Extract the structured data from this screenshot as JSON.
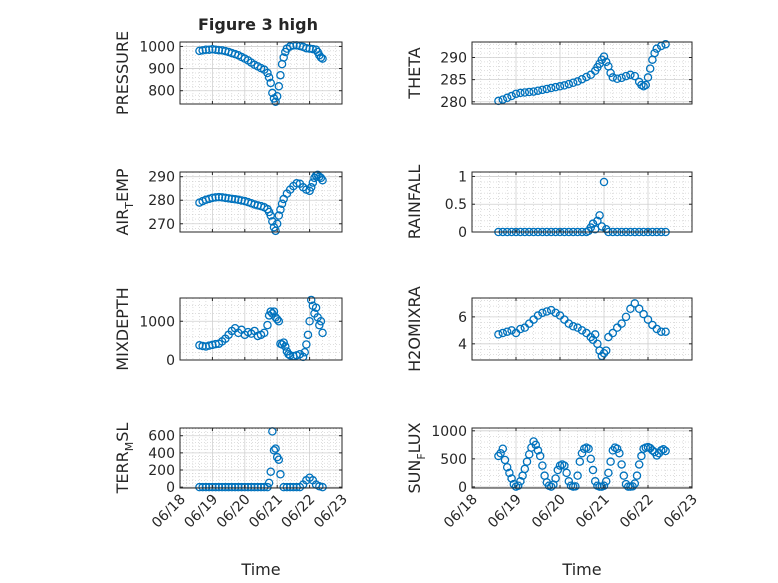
{
  "figure": {
    "title": "Figure 3 high",
    "marker_color": "#0072BD"
  },
  "chart_data": [
    {
      "type": "scatter",
      "ylabel": "PRESSURE",
      "xlim": [
        "06/18",
        "06/23"
      ],
      "ylim": [
        740,
        1020
      ],
      "yticks": [
        800,
        900,
        1000
      ],
      "xticks": [
        "06/18",
        "06/19",
        "06/20",
        "06/21",
        "06/22",
        "06/23"
      ],
      "show_xtick_labels": false,
      "xlabel": "",
      "grid": true,
      "x": [
        0.6,
        0.7,
        0.8,
        0.9,
        1.0,
        1.1,
        1.2,
        1.3,
        1.4,
        1.5,
        1.6,
        1.7,
        1.8,
        1.9,
        2.0,
        2.1,
        2.2,
        2.3,
        2.4,
        2.5,
        2.6,
        2.7,
        2.75,
        2.8,
        2.85,
        2.9,
        2.95,
        3.0,
        3.05,
        3.1,
        3.15,
        3.2,
        3.25,
        3.3,
        3.4,
        3.5,
        3.6,
        3.7,
        3.8,
        3.9,
        4.0,
        4.1,
        4.2,
        4.25,
        4.3,
        4.35,
        4.4
      ],
      "y": [
        980,
        982,
        985,
        985,
        987,
        985,
        983,
        982,
        979,
        975,
        970,
        965,
        960,
        952,
        945,
        937,
        927,
        917,
        910,
        902,
        895,
        880,
        860,
        835,
        790,
        765,
        750,
        775,
        820,
        870,
        920,
        950,
        975,
        990,
        1000,
        1005,
        1005,
        1002,
        998,
        992,
        990,
        988,
        985,
        975,
        960,
        950,
        945
      ]
    },
    {
      "type": "scatter",
      "ylabel": "THETA",
      "xlim": [
        "06/18",
        "06/23"
      ],
      "ylim": [
        279.5,
        293.5
      ],
      "yticks": [
        280,
        285,
        290
      ],
      "xticks": [
        "06/18",
        "06/19",
        "06/20",
        "06/21",
        "06/22",
        "06/23"
      ],
      "show_xtick_labels": false,
      "xlabel": "",
      "grid": true,
      "x": [
        0.6,
        0.7,
        0.8,
        0.9,
        1.0,
        1.1,
        1.2,
        1.3,
        1.4,
        1.5,
        1.6,
        1.7,
        1.8,
        1.9,
        2.0,
        2.1,
        2.2,
        2.3,
        2.4,
        2.5,
        2.6,
        2.7,
        2.8,
        2.85,
        2.9,
        2.95,
        3.0,
        3.05,
        3.1,
        3.15,
        3.2,
        3.3,
        3.4,
        3.5,
        3.6,
        3.7,
        3.8,
        3.85,
        3.9,
        3.95,
        4.0,
        4.05,
        4.1,
        4.15,
        4.2,
        4.3,
        4.4
      ],
      "y": [
        280.2,
        280.5,
        280.9,
        281.3,
        281.8,
        282.0,
        282.1,
        282.2,
        282.3,
        282.5,
        282.7,
        282.9,
        283.1,
        283.3,
        283.5,
        283.7,
        284.0,
        284.3,
        284.6,
        285.1,
        285.6,
        286.1,
        287.0,
        287.8,
        288.6,
        289.5,
        290.2,
        289.0,
        288.0,
        286.5,
        285.5,
        285.2,
        285.4,
        285.8,
        286.1,
        285.8,
        284.5,
        283.8,
        283.5,
        283.8,
        285.5,
        287.5,
        289.5,
        291.0,
        292.0,
        292.6,
        293.0
      ]
    },
    {
      "type": "scatter",
      "ylabel": "AIR_TEMP",
      "ylabel_main": "AIR",
      "ylabel_sub": "T",
      "ylabel_rest": "EMP",
      "xlim": [
        "06/18",
        "06/23"
      ],
      "ylim": [
        266.5,
        292
      ],
      "yticks": [
        270,
        280,
        290
      ],
      "xticks": [
        "06/18",
        "06/19",
        "06/20",
        "06/21",
        "06/22",
        "06/23"
      ],
      "show_xtick_labels": false,
      "xlabel": "",
      "grid": true,
      "x": [
        0.6,
        0.7,
        0.8,
        0.9,
        1.0,
        1.1,
        1.2,
        1.3,
        1.4,
        1.5,
        1.6,
        1.7,
        1.8,
        1.9,
        2.0,
        2.1,
        2.2,
        2.3,
        2.4,
        2.5,
        2.6,
        2.7,
        2.75,
        2.8,
        2.85,
        2.9,
        2.95,
        3.0,
        3.05,
        3.1,
        3.15,
        3.2,
        3.3,
        3.4,
        3.5,
        3.6,
        3.7,
        3.8,
        3.9,
        4.0,
        4.05,
        4.1,
        4.15,
        4.2,
        4.25,
        4.3,
        4.35,
        4.4
      ],
      "y": [
        279.0,
        279.6,
        280.2,
        280.6,
        281.0,
        281.2,
        281.3,
        281.2,
        281.0,
        280.8,
        280.6,
        280.4,
        280.2,
        279.9,
        279.6,
        279.2,
        278.7,
        278.2,
        277.8,
        277.5,
        277.0,
        276.2,
        275.0,
        273.5,
        271.0,
        268.5,
        267.0,
        270.0,
        273.5,
        276.0,
        278.5,
        280.5,
        282.8,
        284.5,
        286.0,
        287.2,
        287.0,
        285.5,
        284.5,
        284.0,
        285.5,
        287.5,
        289.5,
        290.5,
        290.8,
        290.0,
        289.5,
        288.5
      ]
    },
    {
      "type": "scatter",
      "ylabel": "RAINFALL",
      "xlim": [
        "06/18",
        "06/23"
      ],
      "ylim": [
        0,
        1.08
      ],
      "yticks": [
        0,
        0.5,
        1
      ],
      "xticks": [
        "06/18",
        "06/19",
        "06/20",
        "06/21",
        "06/22",
        "06/23"
      ],
      "show_xtick_labels": false,
      "xlabel": "",
      "grid": true,
      "x": [
        0.6,
        0.7,
        0.8,
        0.9,
        1.0,
        1.1,
        1.2,
        1.3,
        1.4,
        1.5,
        1.6,
        1.7,
        1.8,
        1.9,
        2.0,
        2.1,
        2.2,
        2.3,
        2.4,
        2.5,
        2.6,
        2.65,
        2.7,
        2.75,
        2.8,
        2.85,
        2.9,
        2.95,
        3.0,
        3.05,
        3.1,
        3.2,
        3.3,
        3.4,
        3.5,
        3.6,
        3.7,
        3.8,
        3.9,
        4.0,
        4.1,
        4.2,
        4.3,
        4.4
      ],
      "y": [
        0,
        0,
        0,
        0,
        0,
        0,
        0,
        0,
        0,
        0,
        0,
        0,
        0,
        0,
        0,
        0,
        0,
        0,
        0,
        0,
        0,
        0.02,
        0.08,
        0.15,
        0.05,
        0.2,
        0.3,
        0.1,
        0.9,
        0.05,
        0,
        0,
        0,
        0,
        0,
        0,
        0,
        0,
        0,
        0,
        0,
        0,
        0,
        0
      ]
    },
    {
      "type": "scatter",
      "ylabel": "MIXDEPTH",
      "xlim": [
        "06/18",
        "06/23"
      ],
      "ylim": [
        0,
        1600
      ],
      "yticks": [
        0,
        1000
      ],
      "xticks": [
        "06/18",
        "06/19",
        "06/20",
        "06/21",
        "06/22",
        "06/23"
      ],
      "show_xtick_labels": false,
      "xlabel": "",
      "grid": true,
      "x": [
        0.6,
        0.7,
        0.8,
        0.9,
        1.0,
        1.1,
        1.2,
        1.3,
        1.4,
        1.5,
        1.6,
        1.7,
        1.8,
        1.9,
        2.0,
        2.1,
        2.2,
        2.3,
        2.4,
        2.5,
        2.6,
        2.7,
        2.75,
        2.8,
        2.85,
        2.9,
        2.95,
        3.0,
        3.05,
        3.1,
        3.15,
        3.2,
        3.25,
        3.3,
        3.35,
        3.4,
        3.5,
        3.6,
        3.7,
        3.8,
        3.85,
        3.9,
        3.95,
        4.0,
        4.05,
        4.1,
        4.15,
        4.2,
        4.25,
        4.3,
        4.35,
        4.4
      ],
      "y": [
        380,
        360,
        350,
        370,
        390,
        410,
        420,
        480,
        550,
        650,
        750,
        820,
        700,
        780,
        650,
        720,
        680,
        750,
        620,
        650,
        700,
        900,
        1150,
        1250,
        1200,
        1250,
        1100,
        1050,
        1000,
        420,
        400,
        450,
        350,
        220,
        150,
        120,
        100,
        120,
        150,
        80,
        200,
        400,
        650,
        1000,
        1550,
        1400,
        1200,
        1350,
        1100,
        900,
        1000,
        700
      ]
    },
    {
      "type": "scatter",
      "ylabel": "H2OMIXRA",
      "xlim": [
        "06/18",
        "06/23"
      ],
      "ylim": [
        2.8,
        7.4
      ],
      "yticks": [
        4,
        6
      ],
      "xticks": [
        "06/18",
        "06/19",
        "06/20",
        "06/21",
        "06/22",
        "06/23"
      ],
      "show_xtick_labels": false,
      "xlabel": "",
      "grid": true,
      "x": [
        0.6,
        0.7,
        0.8,
        0.9,
        1.0,
        1.1,
        1.2,
        1.3,
        1.4,
        1.5,
        1.6,
        1.7,
        1.8,
        1.9,
        2.0,
        2.1,
        2.2,
        2.3,
        2.4,
        2.5,
        2.6,
        2.7,
        2.75,
        2.8,
        2.85,
        2.9,
        2.95,
        3.0,
        3.05,
        3.1,
        3.2,
        3.3,
        3.4,
        3.5,
        3.6,
        3.7,
        3.8,
        3.9,
        4.0,
        4.1,
        4.2,
        4.3,
        4.4
      ],
      "y": [
        4.7,
        4.8,
        4.9,
        5.0,
        4.8,
        5.1,
        5.2,
        5.5,
        5.8,
        6.1,
        6.3,
        6.4,
        6.5,
        6.3,
        6.1,
        5.8,
        5.5,
        5.3,
        5.2,
        5.0,
        4.8,
        4.5,
        4.3,
        4.7,
        4.0,
        3.5,
        3.1,
        3.3,
        3.5,
        4.5,
        4.8,
        5.2,
        5.5,
        6.0,
        6.6,
        7.0,
        6.6,
        6.2,
        5.8,
        5.4,
        5.1,
        4.9,
        4.9
      ]
    },
    {
      "type": "scatter",
      "ylabel": "TERR_MSL",
      "ylabel_main": "TERR",
      "ylabel_sub": "M",
      "ylabel_rest": "SL",
      "xlim": [
        "06/18",
        "06/23"
      ],
      "ylim": [
        -10,
        690
      ],
      "yticks": [
        0,
        200,
        400,
        600
      ],
      "xticks": [
        "06/18",
        "06/19",
        "06/20",
        "06/21",
        "06/22",
        "06/23"
      ],
      "show_xtick_labels": true,
      "xlabel": "Time",
      "grid": true,
      "x": [
        0.6,
        0.7,
        0.8,
        0.9,
        1.0,
        1.1,
        1.2,
        1.3,
        1.4,
        1.5,
        1.6,
        1.7,
        1.8,
        1.9,
        2.0,
        2.1,
        2.2,
        2.3,
        2.4,
        2.5,
        2.6,
        2.7,
        2.75,
        2.8,
        2.85,
        2.9,
        2.95,
        3.0,
        3.05,
        3.1,
        3.2,
        3.3,
        3.4,
        3.5,
        3.6,
        3.7,
        3.8,
        3.9,
        4.0,
        4.1,
        4.2,
        4.3,
        4.4
      ],
      "y": [
        0,
        0,
        0,
        0,
        0,
        0,
        0,
        0,
        0,
        0,
        0,
        0,
        0,
        0,
        0,
        0,
        0,
        0,
        0,
        0,
        0,
        0,
        50,
        180,
        650,
        430,
        450,
        350,
        320,
        150,
        0,
        0,
        0,
        0,
        0,
        0,
        30,
        80,
        110,
        80,
        30,
        10,
        0
      ]
    },
    {
      "type": "scatter",
      "ylabel": "SUN_FLUX",
      "ylabel_main": "SUN",
      "ylabel_sub": "F",
      "ylabel_rest": "LUX",
      "xlim": [
        "06/18",
        "06/23"
      ],
      "ylim": [
        -20,
        1050
      ],
      "yticks": [
        0,
        500,
        1000
      ],
      "xticks": [
        "06/18",
        "06/19",
        "06/20",
        "06/21",
        "06/22",
        "06/23"
      ],
      "show_xtick_labels": true,
      "xlabel": "Time",
      "grid": true,
      "x": [
        0.6,
        0.65,
        0.7,
        0.75,
        0.8,
        0.85,
        0.9,
        0.95,
        1.0,
        1.05,
        1.1,
        1.15,
        1.2,
        1.25,
        1.3,
        1.35,
        1.4,
        1.45,
        1.5,
        1.55,
        1.6,
        1.65,
        1.7,
        1.75,
        1.8,
        1.85,
        1.9,
        1.95,
        2.0,
        2.05,
        2.1,
        2.15,
        2.2,
        2.25,
        2.3,
        2.35,
        2.4,
        2.45,
        2.5,
        2.55,
        2.6,
        2.65,
        2.7,
        2.75,
        2.8,
        2.85,
        2.9,
        2.95,
        3.0,
        3.05,
        3.1,
        3.15,
        3.2,
        3.25,
        3.3,
        3.35,
        3.4,
        3.45,
        3.5,
        3.55,
        3.6,
        3.65,
        3.7,
        3.75,
        3.8,
        3.85,
        3.9,
        3.95,
        4.0,
        4.05,
        4.1,
        4.15,
        4.2,
        4.25,
        4.3,
        4.35,
        4.4
      ],
      "y": [
        550,
        600,
        680,
        480,
        350,
        250,
        150,
        50,
        5,
        20,
        100,
        200,
        320,
        450,
        580,
        700,
        810,
        750,
        650,
        550,
        380,
        200,
        80,
        20,
        5,
        40,
        150,
        300,
        380,
        400,
        380,
        250,
        100,
        20,
        5,
        10,
        200,
        450,
        600,
        680,
        700,
        680,
        500,
        300,
        100,
        20,
        5,
        5,
        20,
        100,
        250,
        450,
        650,
        700,
        680,
        600,
        400,
        200,
        50,
        5,
        5,
        10,
        60,
        200,
        400,
        550,
        680,
        700,
        710,
        690,
        650,
        620,
        560,
        600,
        650,
        670,
        640
      ]
    }
  ]
}
